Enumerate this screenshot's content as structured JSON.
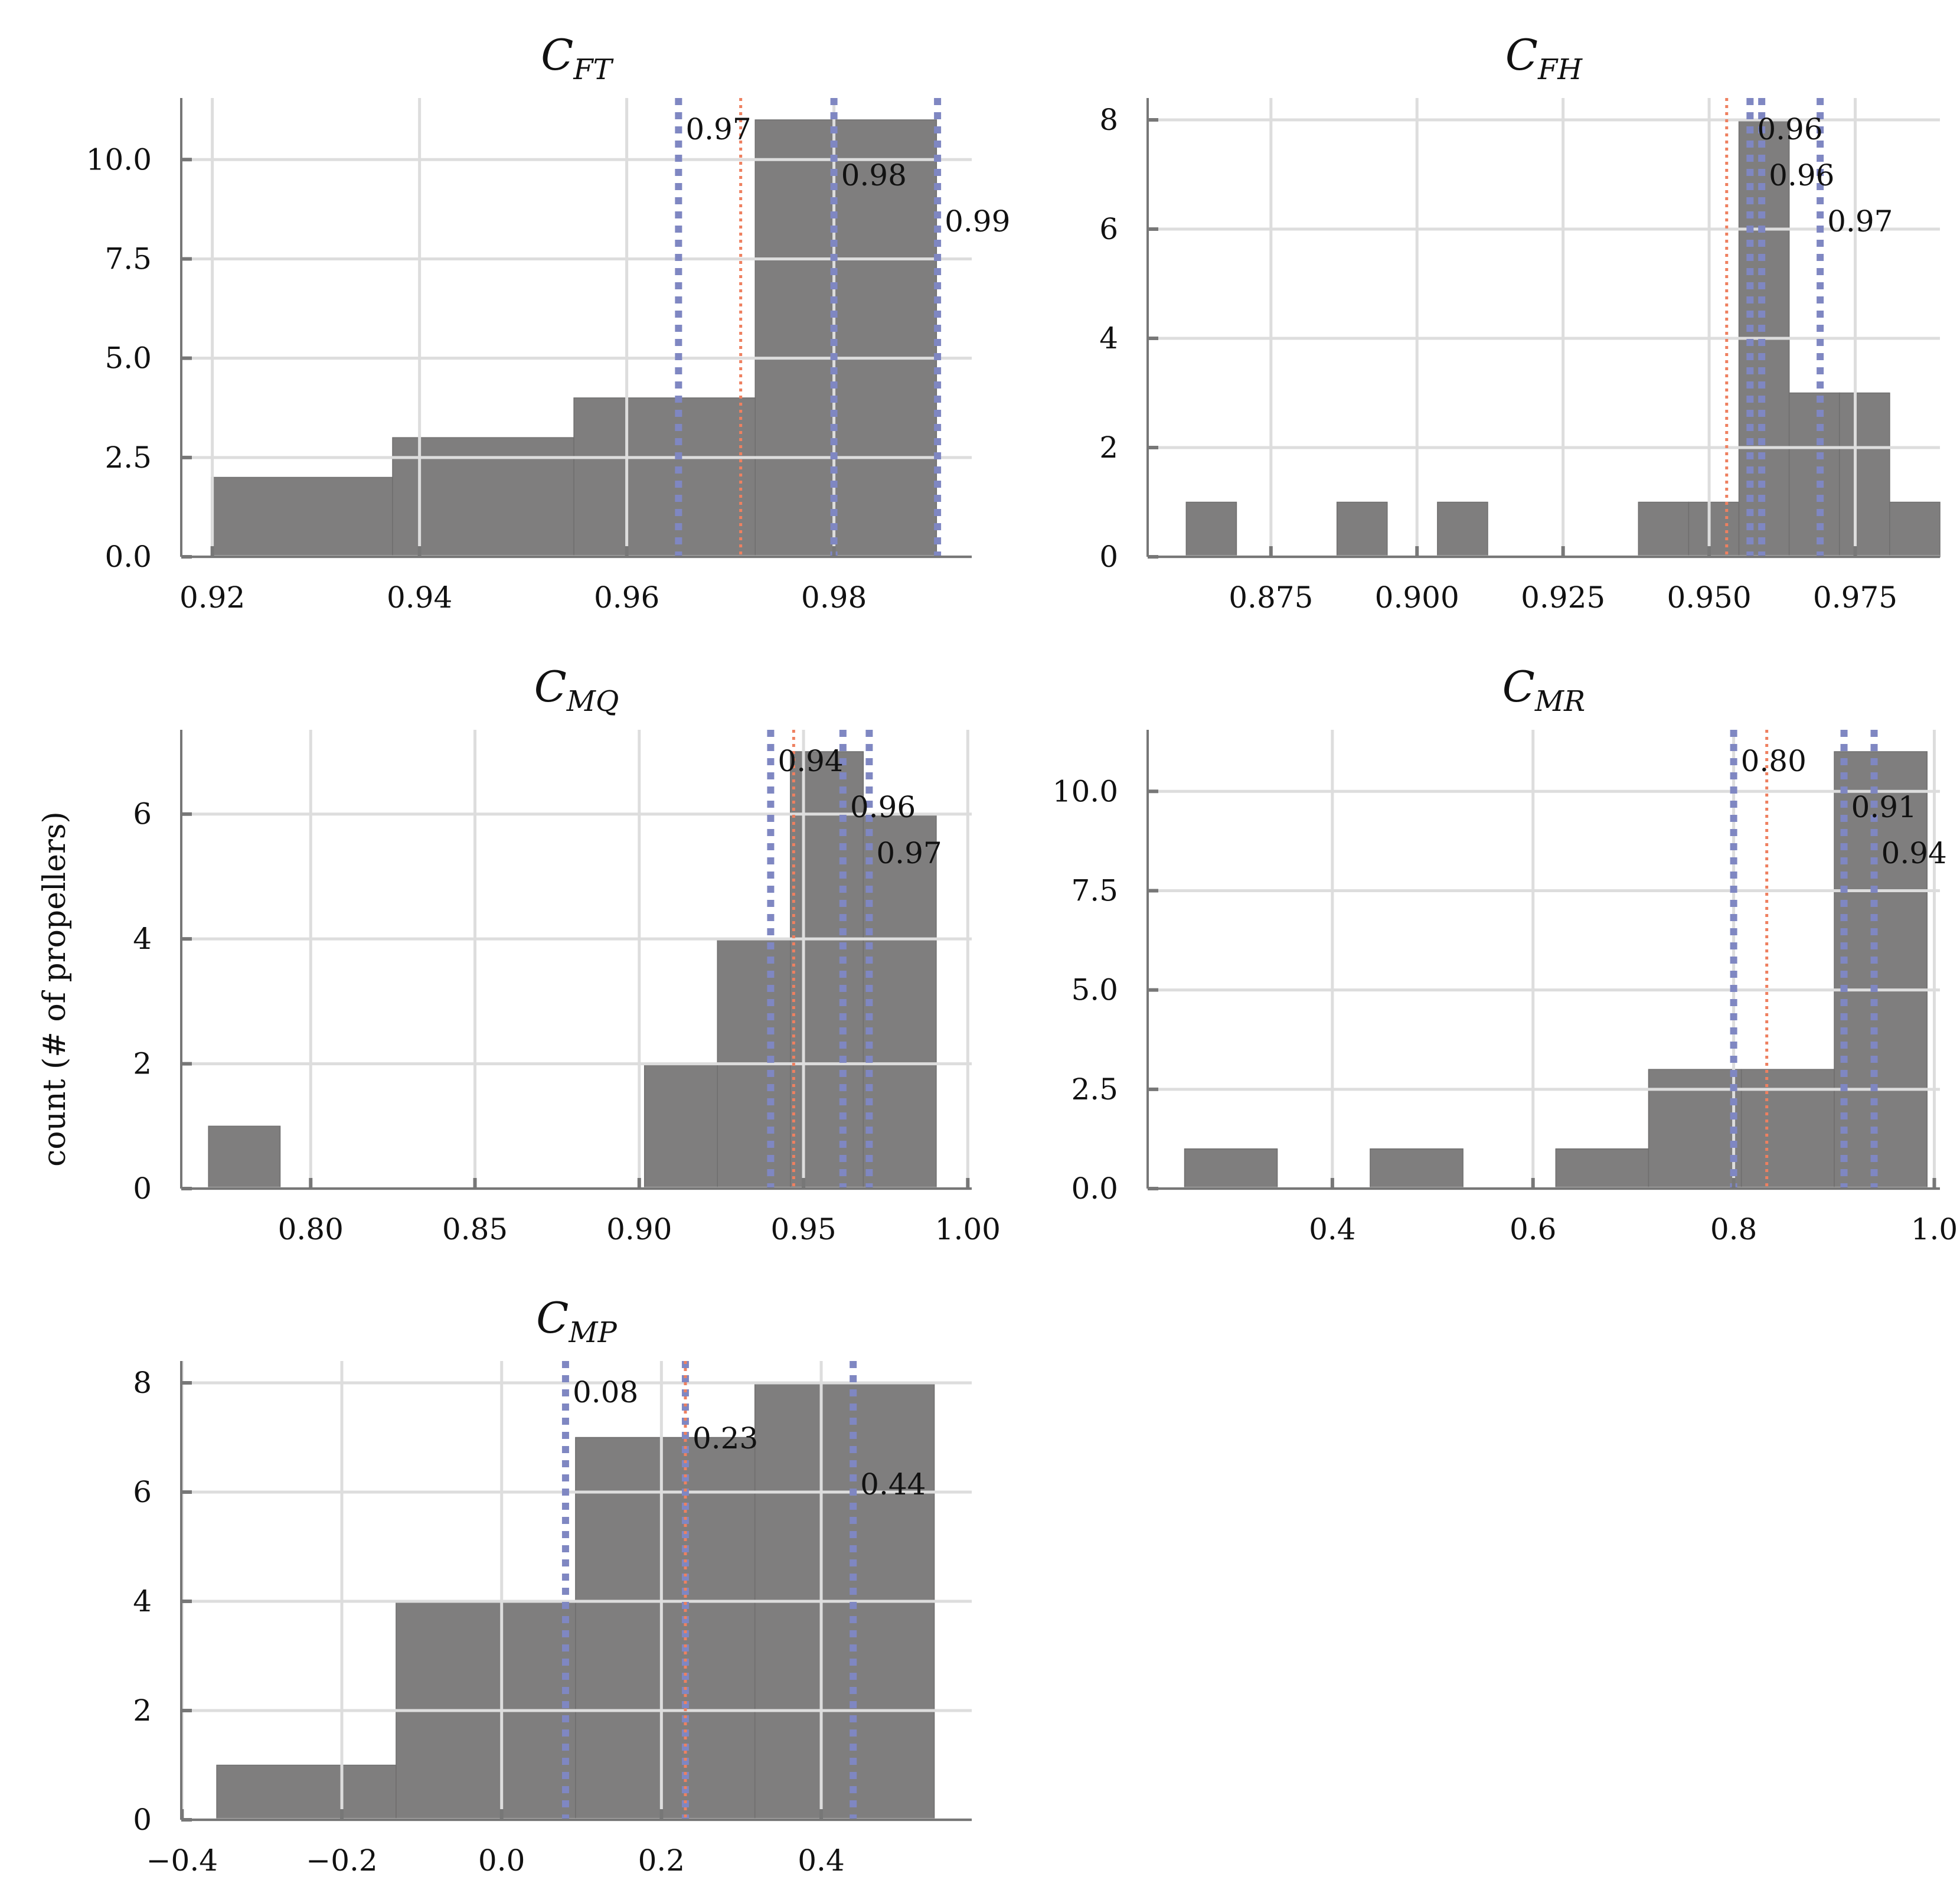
{
  "figure": {
    "ylabel": "count (# of propellers)",
    "colors": {
      "bar": "#7f7e7e",
      "bar_edge": "#6f6e6e",
      "grid": "#dddddd",
      "axis": "#777777",
      "quantile": "#7f87c2",
      "mean": "#ee8060"
    }
  },
  "chart_data": [
    {
      "type": "bar",
      "title_main": "C",
      "title_sub": "FT",
      "bins": [
        {
          "x0": 0.9199,
          "x1": 0.9374,
          "count": 2
        },
        {
          "x0": 0.9374,
          "x1": 0.9549,
          "count": 3
        },
        {
          "x0": 0.9549,
          "x1": 0.9724,
          "count": 4
        },
        {
          "x0": 0.9724,
          "x1": 0.9899,
          "count": 11
        }
      ],
      "xlim": [
        0.917,
        0.9933
      ],
      "ylim": [
        0,
        11.55
      ],
      "xticks": [
        0.92,
        0.94,
        0.96,
        0.98
      ],
      "xtick_labels": [
        "0.92",
        "0.94",
        "0.96",
        "0.98"
      ],
      "yticks": [
        0,
        2.5,
        5,
        7.5,
        10
      ],
      "ytick_labels": [
        "0.0",
        "2.5",
        "5.0",
        "7.5",
        "10.0"
      ],
      "quantiles": [
        0.965,
        0.98,
        0.99
      ],
      "quantile_labels": [
        "0.97",
        "0.98",
        "0.99"
      ],
      "mean": 0.971
    },
    {
      "type": "bar",
      "title_main": "C",
      "title_sub": "FH",
      "bins": [
        {
          "x0": 0.8605,
          "x1": 0.8691,
          "count": 1
        },
        {
          "x0": 0.8863,
          "x1": 0.8949,
          "count": 1
        },
        {
          "x0": 0.9035,
          "x1": 0.9121,
          "count": 1
        },
        {
          "x0": 0.9379,
          "x1": 0.9465,
          "count": 1
        },
        {
          "x0": 0.9465,
          "x1": 0.9551,
          "count": 1
        },
        {
          "x0": 0.9551,
          "x1": 0.9637,
          "count": 8
        },
        {
          "x0": 0.9637,
          "x1": 0.9723,
          "count": 3
        },
        {
          "x0": 0.9723,
          "x1": 0.9809,
          "count": 3
        },
        {
          "x0": 0.9809,
          "x1": 0.9895,
          "count": 1
        }
      ],
      "xlim": [
        0.8539,
        0.9895
      ],
      "ylim": [
        0,
        8.4
      ],
      "xticks": [
        0.875,
        0.9,
        0.925,
        0.95,
        0.975
      ],
      "xtick_labels": [
        "0.875",
        "0.900",
        "0.925",
        "0.950",
        "0.975"
      ],
      "yticks": [
        0,
        2,
        4,
        6,
        8
      ],
      "ytick_labels": [
        "0",
        "2",
        "4",
        "6",
        "8"
      ],
      "quantiles": [
        0.957,
        0.959,
        0.969
      ],
      "quantile_labels": [
        "0.96",
        "0.96",
        "0.97"
      ],
      "mean": 0.953
    },
    {
      "type": "bar",
      "title_main": "C",
      "title_sub": "MQ",
      "bins": [
        {
          "x0": 0.7689,
          "x1": 0.7907,
          "count": 1
        },
        {
          "x0": 0.9016,
          "x1": 0.9238,
          "count": 2
        },
        {
          "x0": 0.9238,
          "x1": 0.946,
          "count": 4
        },
        {
          "x0": 0.946,
          "x1": 0.9682,
          "count": 7
        },
        {
          "x0": 0.9682,
          "x1": 0.9904,
          "count": 6
        }
      ],
      "xlim": [
        0.7606,
        1.0012
      ],
      "ylim": [
        0,
        7.35
      ],
      "xticks": [
        0.8,
        0.85,
        0.9,
        0.95,
        1.0
      ],
      "xtick_labels": [
        "0.80",
        "0.85",
        "0.90",
        "0.95",
        "1.00"
      ],
      "yticks": [
        0,
        2,
        4,
        6
      ],
      "ytick_labels": [
        "0",
        "2",
        "4",
        "6"
      ],
      "quantiles": [
        0.94,
        0.962,
        0.97
      ],
      "quantile_labels": [
        "0.94",
        "0.96",
        "0.97"
      ],
      "mean": 0.947
    },
    {
      "type": "bar",
      "title_main": "C",
      "title_sub": "MR",
      "bins": [
        {
          "x0": 0.2527,
          "x1": 0.3451,
          "count": 1
        },
        {
          "x0": 0.4377,
          "x1": 0.5302,
          "count": 1
        },
        {
          "x0": 0.6227,
          "x1": 0.7152,
          "count": 1
        },
        {
          "x0": 0.7152,
          "x1": 0.8077,
          "count": 3
        },
        {
          "x0": 0.8077,
          "x1": 0.9003,
          "count": 3
        },
        {
          "x0": 0.9003,
          "x1": 0.9928,
          "count": 11
        }
      ],
      "xlim": [
        0.2159,
        1.0056
      ],
      "ylim": [
        0,
        11.55
      ],
      "xticks": [
        0.4,
        0.6,
        0.8,
        1.0
      ],
      "xtick_labels": [
        "0.4",
        "0.6",
        "0.8",
        "1.0"
      ],
      "yticks": [
        0,
        2.5,
        5,
        7.5,
        10
      ],
      "ytick_labels": [
        "0.0",
        "2.5",
        "5.0",
        "7.5",
        "10.0"
      ],
      "quantiles": [
        0.8,
        0.91,
        0.94
      ],
      "quantile_labels": [
        "0.80",
        "0.91",
        "0.94"
      ],
      "mean": 0.833
    },
    {
      "type": "bar",
      "title_main": "C",
      "title_sub": "MP",
      "bins": [
        {
          "x0": -0.3566,
          "x1": -0.1321,
          "count": 1
        },
        {
          "x0": -0.1321,
          "x1": 0.0925,
          "count": 4
        },
        {
          "x0": 0.0925,
          "x1": 0.317,
          "count": 7
        },
        {
          "x0": 0.317,
          "x1": 0.5415,
          "count": 8
        }
      ],
      "xlim": [
        -0.401,
        0.5884
      ],
      "ylim": [
        0,
        8.4
      ],
      "xticks": [
        -0.4,
        -0.2,
        0.0,
        0.2,
        0.4
      ],
      "xtick_labels": [
        "−0.4",
        "−0.2",
        "0.0",
        "0.2",
        "0.4"
      ],
      "yticks": [
        0,
        2,
        4,
        6,
        8
      ],
      "ytick_labels": [
        "0",
        "2",
        "4",
        "6",
        "8"
      ],
      "quantiles": [
        0.08,
        0.23,
        0.44
      ],
      "quantile_labels": [
        "0.08",
        "0.23",
        "0.44"
      ],
      "mean": 0.23
    }
  ]
}
